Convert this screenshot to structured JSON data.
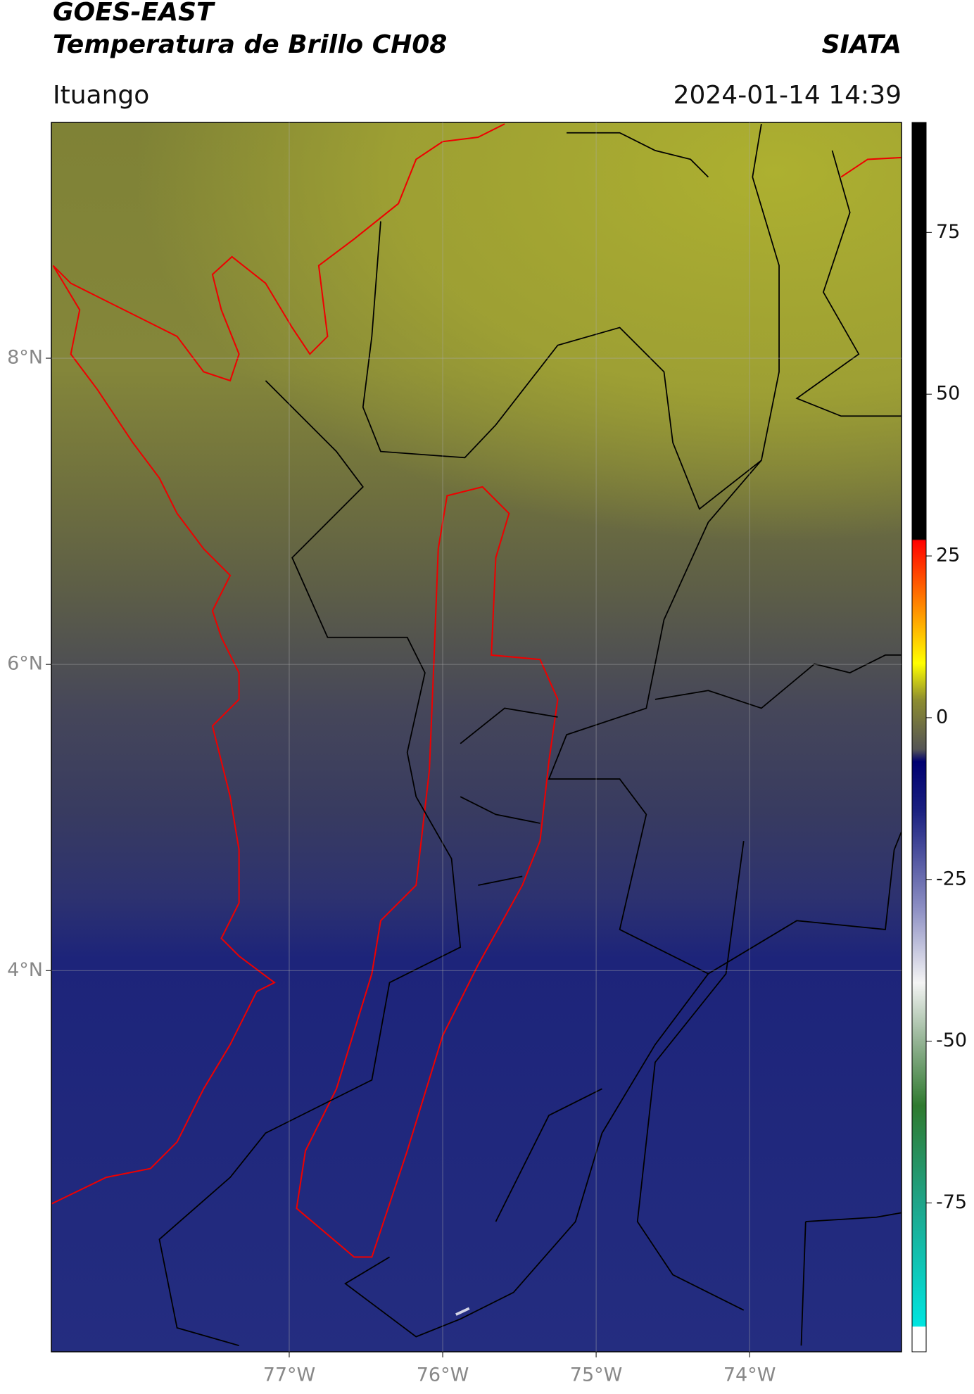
{
  "map": {
    "title": "GOES-EAST",
    "subtitle": "Temperatura de Brillo CH08",
    "source": "SIATA",
    "region": "Ituango",
    "datetime": "2024-01-14 14:39",
    "lonlim": [
      -78.55,
      -73.01
    ],
    "latlim": [
      1.51,
      9.54
    ],
    "lonticks": [
      {
        "value": -77,
        "label": "77°W"
      },
      {
        "value": -76,
        "label": "76°W"
      },
      {
        "value": -75,
        "label": "75°W"
      },
      {
        "value": -74,
        "label": "74°W"
      }
    ],
    "latticks": [
      {
        "value": 8,
        "label": "8°N"
      },
      {
        "value": 6,
        "label": "6°N"
      },
      {
        "value": 4,
        "label": "4°N"
      }
    ],
    "colorbar_lim": [
      -98,
      92
    ],
    "colorbar_ticks": [
      75,
      50,
      25,
      0,
      -25,
      -50,
      -75
    ]
  }
}
